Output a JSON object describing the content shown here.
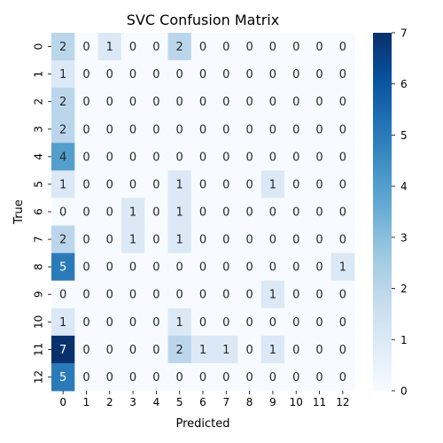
{
  "chart_data": {
    "type": "heatmap",
    "title": "SVC Confusion Matrix",
    "xlabel": "Predicted",
    "ylabel": "True",
    "x_categories": [
      "0",
      "1",
      "2",
      "3",
      "4",
      "5",
      "6",
      "7",
      "8",
      "9",
      "10",
      "11",
      "12"
    ],
    "y_categories": [
      "0",
      "1",
      "2",
      "3",
      "4",
      "5",
      "6",
      "7",
      "8",
      "9",
      "10",
      "11",
      "12"
    ],
    "matrix": [
      [
        2,
        0,
        1,
        0,
        0,
        2,
        0,
        0,
        0,
        0,
        0,
        0,
        0
      ],
      [
        1,
        0,
        0,
        0,
        0,
        0,
        0,
        0,
        0,
        0,
        0,
        0,
        0
      ],
      [
        2,
        0,
        0,
        0,
        0,
        0,
        0,
        0,
        0,
        0,
        0,
        0,
        0
      ],
      [
        2,
        0,
        0,
        0,
        0,
        0,
        0,
        0,
        0,
        0,
        0,
        0,
        0
      ],
      [
        4,
        0,
        0,
        0,
        0,
        0,
        0,
        0,
        0,
        0,
        0,
        0,
        0
      ],
      [
        1,
        0,
        0,
        0,
        0,
        1,
        0,
        0,
        0,
        1,
        0,
        0,
        0
      ],
      [
        0,
        0,
        0,
        1,
        0,
        1,
        0,
        0,
        0,
        0,
        0,
        0,
        0
      ],
      [
        2,
        0,
        0,
        1,
        0,
        1,
        0,
        0,
        0,
        0,
        0,
        0,
        0
      ],
      [
        5,
        0,
        0,
        0,
        0,
        0,
        0,
        0,
        0,
        0,
        0,
        0,
        1
      ],
      [
        0,
        0,
        0,
        0,
        0,
        0,
        0,
        0,
        0,
        1,
        0,
        0,
        0
      ],
      [
        1,
        0,
        0,
        0,
        0,
        1,
        0,
        0,
        0,
        0,
        0,
        0,
        0
      ],
      [
        7,
        0,
        0,
        0,
        0,
        2,
        1,
        1,
        0,
        1,
        0,
        0,
        0
      ],
      [
        5,
        0,
        0,
        0,
        0,
        0,
        0,
        0,
        0,
        0,
        0,
        0,
        0
      ]
    ],
    "colorbar": {
      "min": 0,
      "max": 7,
      "ticks": [
        "0",
        "1",
        "2",
        "3",
        "4",
        "5",
        "6",
        "7"
      ]
    },
    "colormap": [
      "#f7fbff",
      "#deebf7",
      "#c6dbef",
      "#9ecae1",
      "#6baed6",
      "#4292c6",
      "#2171b5",
      "#08519c",
      "#08306b"
    ]
  }
}
